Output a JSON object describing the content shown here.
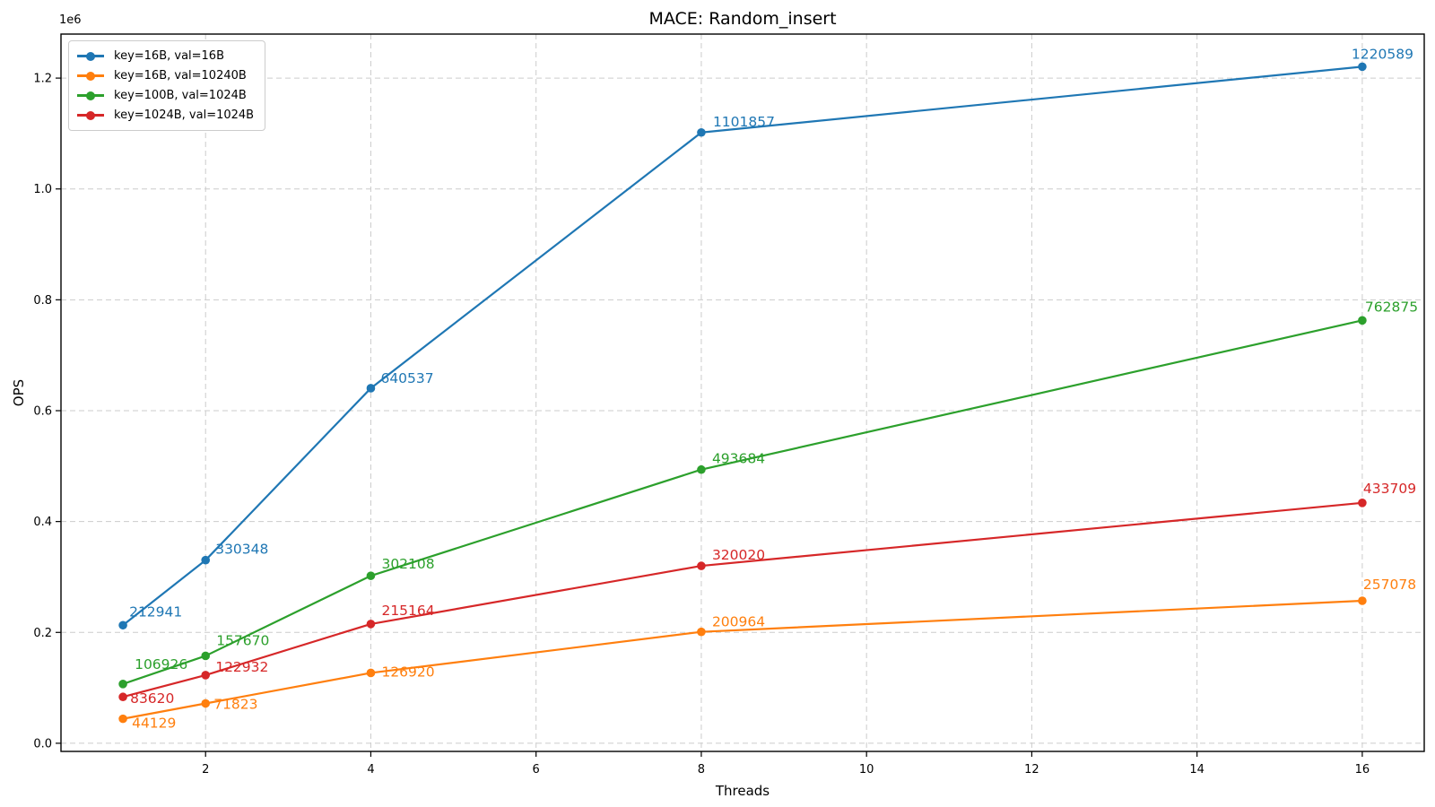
{
  "chart_data": {
    "type": "line",
    "title": "MACE: Random_insert",
    "xlabel": "Threads",
    "ylabel": "OPS",
    "y_offset_label": "1e6",
    "x": [
      1,
      2,
      4,
      8,
      16
    ],
    "series": [
      {
        "name": "key=16B, val=16B",
        "color": "#1f77b4",
        "values": [
          212941,
          330348,
          640537,
          1101857,
          1220589
        ]
      },
      {
        "name": "key=16B, val=10240B",
        "color": "#ff7f0e",
        "values": [
          44129,
          71823,
          126920,
          200964,
          257078
        ]
      },
      {
        "name": "key=100B, val=1024B",
        "color": "#2ca02c",
        "values": [
          106926,
          157670,
          302108,
          493684,
          762875
        ]
      },
      {
        "name": "key=1024B, val=1024B",
        "color": "#d62728",
        "values": [
          83620,
          122932,
          215164,
          320020,
          433709
        ]
      }
    ],
    "xticks": [
      2,
      4,
      6,
      8,
      10,
      12,
      14,
      16
    ],
    "xtick_labels": [
      "2",
      "4",
      "6",
      "8",
      "10",
      "12",
      "14",
      "16"
    ],
    "yticks": [
      0,
      200000,
      400000,
      600000,
      800000,
      1000000,
      1200000
    ],
    "ytick_labels": [
      "0.0",
      "0.2",
      "0.4",
      "0.6",
      "0.8",
      "1.0",
      "1.2"
    ],
    "xlim": [
      0.25,
      16.75
    ],
    "ylim": [
      -14694,
      1279412
    ],
    "grid": true,
    "grid_color": "#cccccc",
    "spine_color": "#000000",
    "text_color": "#000000",
    "legend_position": "upper-left",
    "marker": "circle",
    "point_labels_visible": true
  }
}
